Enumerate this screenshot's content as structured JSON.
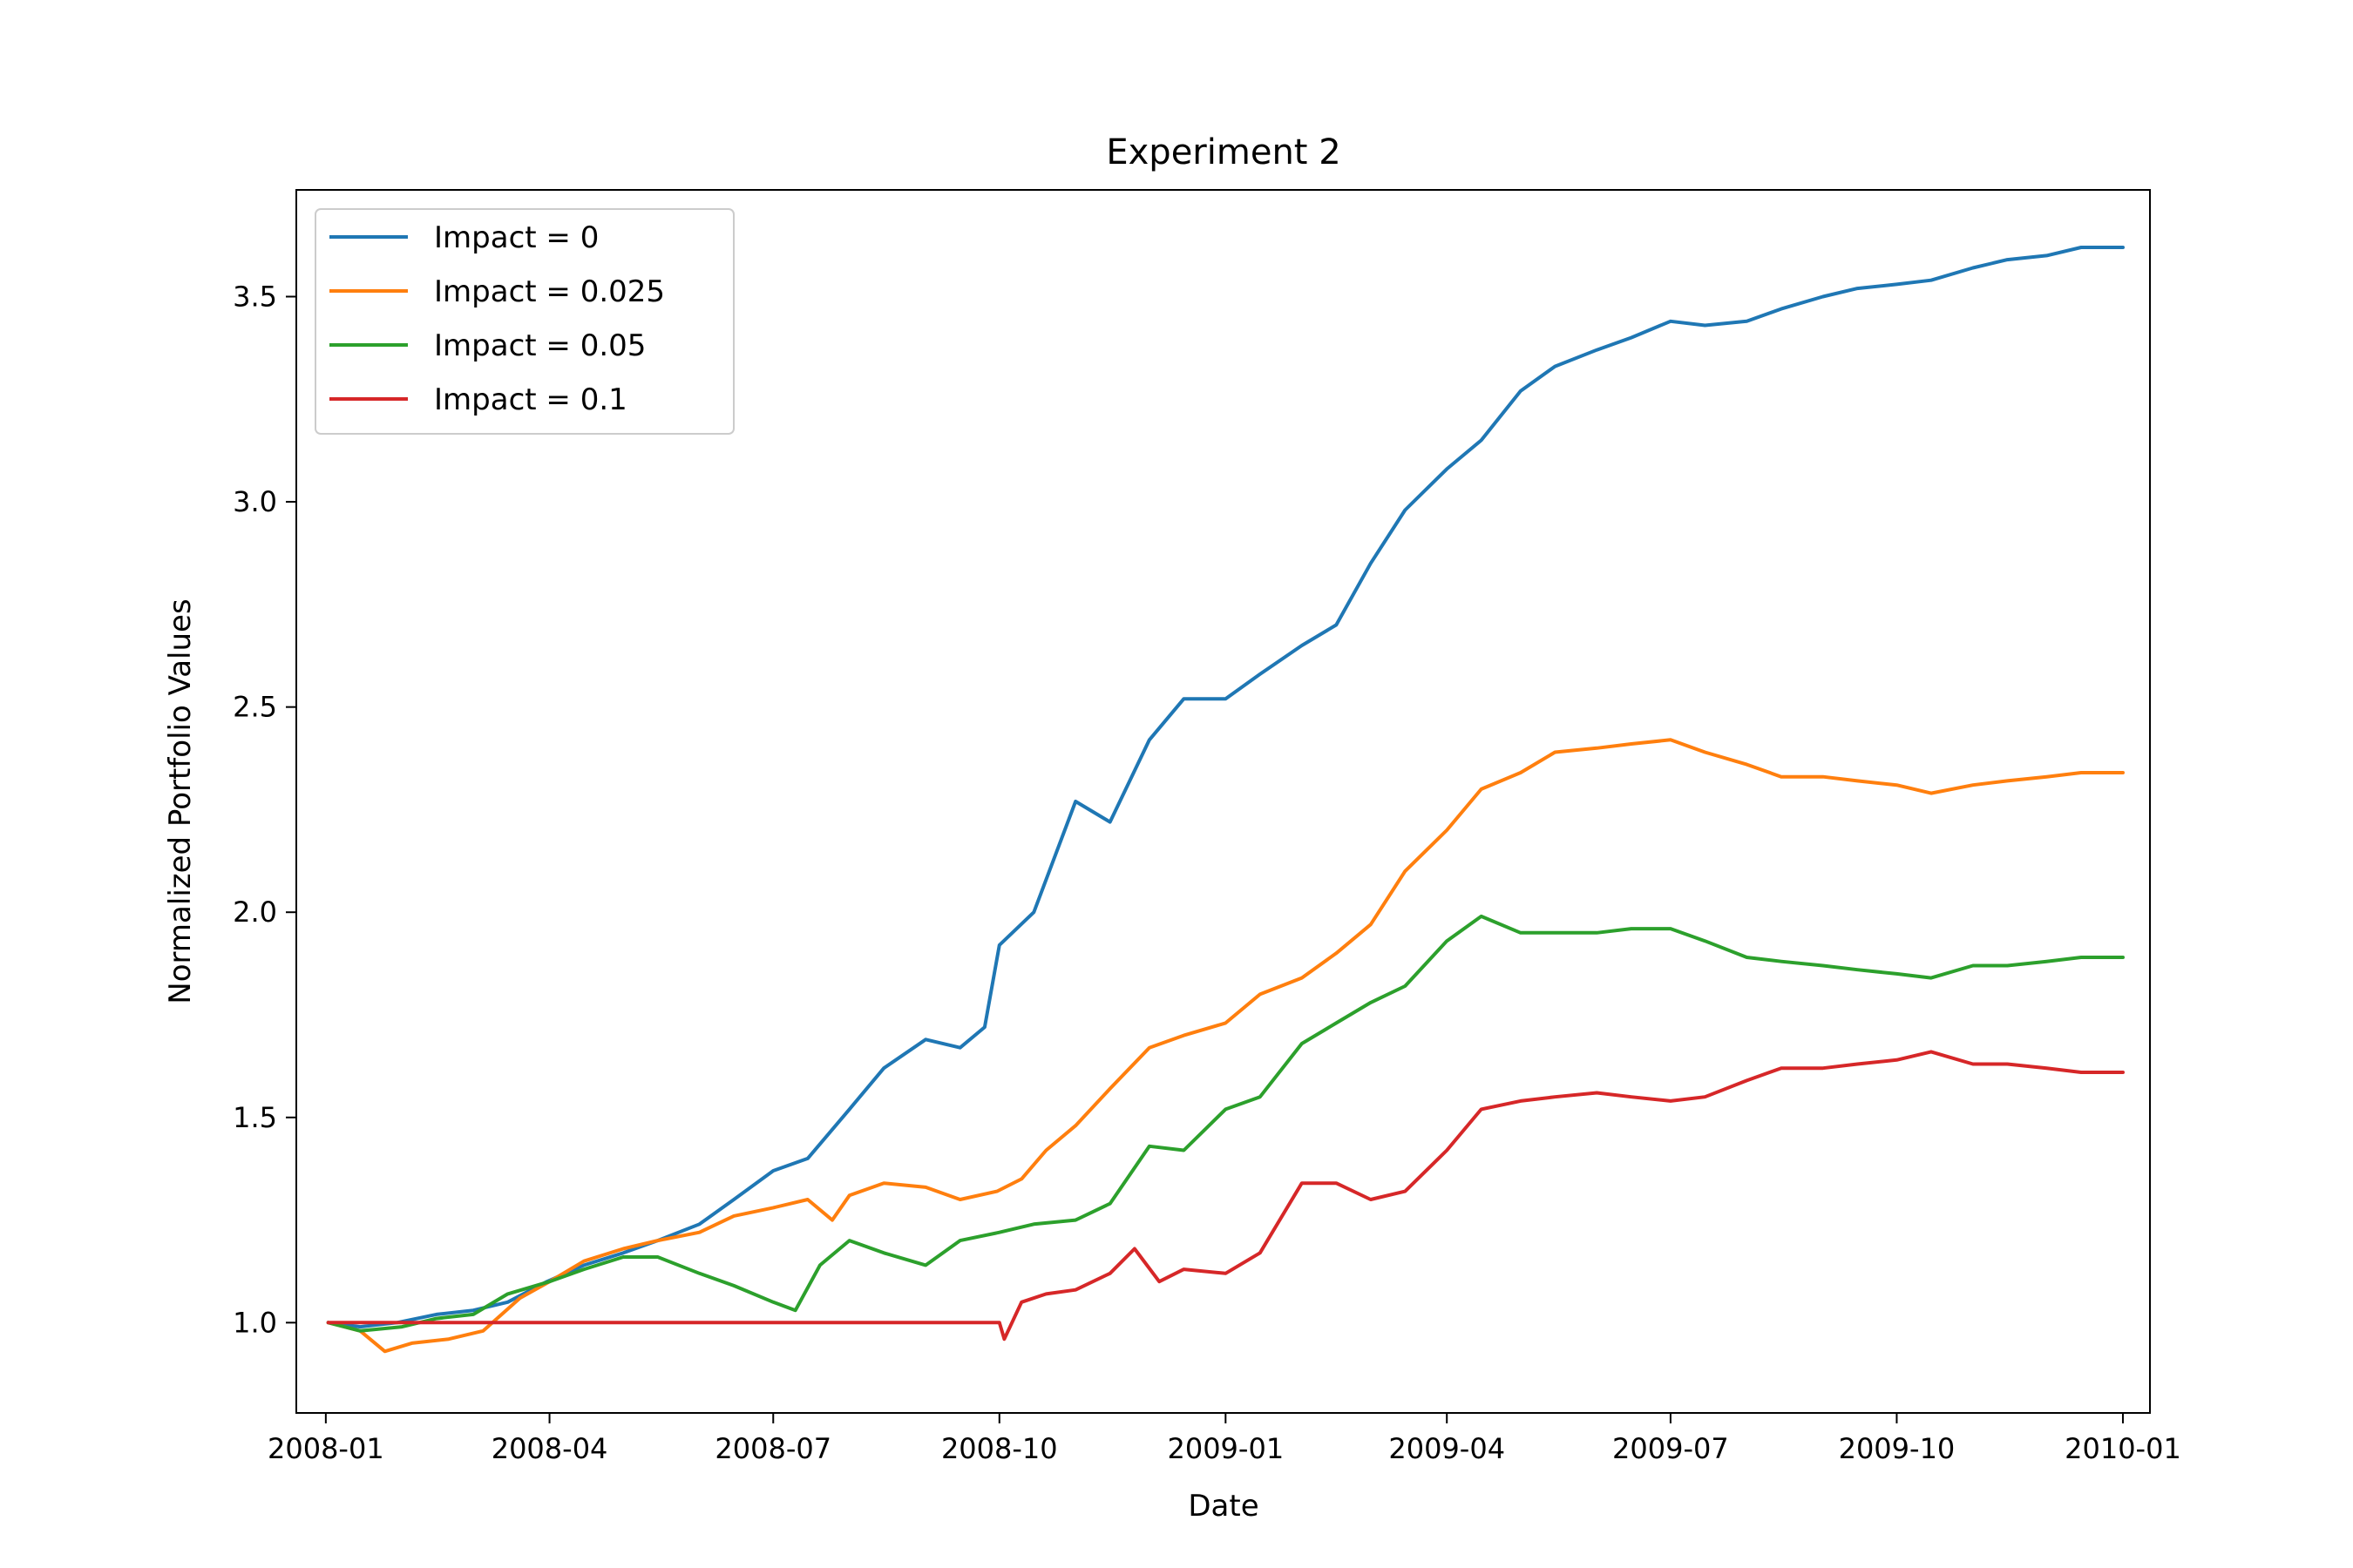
{
  "chart_data": {
    "type": "line",
    "title": "Experiment 2",
    "xlabel": "Date",
    "ylabel": "Normalized Portfolio Values",
    "x_ticks": [
      "2008-01",
      "2008-04",
      "2008-07",
      "2008-10",
      "2009-01",
      "2009-04",
      "2009-07",
      "2009-10",
      "2010-01"
    ],
    "y_ticks": [
      "1.0",
      "1.5",
      "2.0",
      "2.5",
      "3.0",
      "3.5"
    ],
    "xlim": [
      "2007-12-20",
      "2010-01-12"
    ],
    "ylim": [
      0.78,
      3.76
    ],
    "grid": false,
    "legend_position": "top-left",
    "series": [
      {
        "name": "Impact = 0",
        "color": "#1f77b4",
        "points": [
          [
            "2008-01-02",
            1.0
          ],
          [
            "2008-01-15",
            0.99
          ],
          [
            "2008-01-30",
            1.0
          ],
          [
            "2008-02-15",
            1.02
          ],
          [
            "2008-03-01",
            1.03
          ],
          [
            "2008-03-15",
            1.05
          ],
          [
            "2008-03-31",
            1.1
          ],
          [
            "2008-04-15",
            1.14
          ],
          [
            "2008-05-01",
            1.17
          ],
          [
            "2008-05-15",
            1.2
          ],
          [
            "2008-06-01",
            1.24
          ],
          [
            "2008-06-15",
            1.3
          ],
          [
            "2008-07-01",
            1.37
          ],
          [
            "2008-07-15",
            1.4
          ],
          [
            "2008-08-01",
            1.52
          ],
          [
            "2008-08-15",
            1.62
          ],
          [
            "2008-09-01",
            1.69
          ],
          [
            "2008-09-15",
            1.67
          ],
          [
            "2008-09-25",
            1.72
          ],
          [
            "2008-10-01",
            1.92
          ],
          [
            "2008-10-15",
            2.0
          ],
          [
            "2008-11-01",
            2.27
          ],
          [
            "2008-11-15",
            2.22
          ],
          [
            "2008-12-01",
            2.42
          ],
          [
            "2008-12-15",
            2.52
          ],
          [
            "2009-01-01",
            2.52
          ],
          [
            "2009-01-15",
            2.58
          ],
          [
            "2009-02-01",
            2.65
          ],
          [
            "2009-02-15",
            2.7
          ],
          [
            "2009-03-01",
            2.85
          ],
          [
            "2009-03-15",
            2.98
          ],
          [
            "2009-04-01",
            3.08
          ],
          [
            "2009-04-15",
            3.15
          ],
          [
            "2009-05-01",
            3.27
          ],
          [
            "2009-05-15",
            3.33
          ],
          [
            "2009-06-01",
            3.37
          ],
          [
            "2009-06-15",
            3.4
          ],
          [
            "2009-07-01",
            3.44
          ],
          [
            "2009-07-15",
            3.43
          ],
          [
            "2009-08-01",
            3.44
          ],
          [
            "2009-08-15",
            3.47
          ],
          [
            "2009-09-01",
            3.5
          ],
          [
            "2009-09-15",
            3.52
          ],
          [
            "2009-10-01",
            3.53
          ],
          [
            "2009-10-15",
            3.54
          ],
          [
            "2009-11-01",
            3.57
          ],
          [
            "2009-11-15",
            3.59
          ],
          [
            "2009-12-01",
            3.6
          ],
          [
            "2009-12-15",
            3.62
          ],
          [
            "2010-01-01",
            3.62
          ]
        ]
      },
      {
        "name": "Impact = 0.025",
        "color": "#ff7f0e",
        "points": [
          [
            "2008-01-02",
            1.0
          ],
          [
            "2008-01-15",
            0.98
          ],
          [
            "2008-01-25",
            0.93
          ],
          [
            "2008-02-05",
            0.95
          ],
          [
            "2008-02-20",
            0.96
          ],
          [
            "2008-03-05",
            0.98
          ],
          [
            "2008-03-20",
            1.06
          ],
          [
            "2008-04-01",
            1.1
          ],
          [
            "2008-04-15",
            1.15
          ],
          [
            "2008-05-01",
            1.18
          ],
          [
            "2008-05-15",
            1.2
          ],
          [
            "2008-06-01",
            1.22
          ],
          [
            "2008-06-15",
            1.26
          ],
          [
            "2008-07-01",
            1.28
          ],
          [
            "2008-07-15",
            1.3
          ],
          [
            "2008-07-25",
            1.25
          ],
          [
            "2008-08-01",
            1.31
          ],
          [
            "2008-08-15",
            1.34
          ],
          [
            "2008-09-01",
            1.33
          ],
          [
            "2008-09-15",
            1.3
          ],
          [
            "2008-09-30",
            1.32
          ],
          [
            "2008-10-10",
            1.35
          ],
          [
            "2008-10-20",
            1.42
          ],
          [
            "2008-11-01",
            1.48
          ],
          [
            "2008-11-15",
            1.57
          ],
          [
            "2008-12-01",
            1.67
          ],
          [
            "2008-12-15",
            1.7
          ],
          [
            "2009-01-01",
            1.73
          ],
          [
            "2009-01-15",
            1.8
          ],
          [
            "2009-02-01",
            1.84
          ],
          [
            "2009-02-15",
            1.9
          ],
          [
            "2009-03-01",
            1.97
          ],
          [
            "2009-03-15",
            2.1
          ],
          [
            "2009-04-01",
            2.2
          ],
          [
            "2009-04-15",
            2.3
          ],
          [
            "2009-05-01",
            2.34
          ],
          [
            "2009-05-15",
            2.39
          ],
          [
            "2009-06-01",
            2.4
          ],
          [
            "2009-06-15",
            2.41
          ],
          [
            "2009-07-01",
            2.42
          ],
          [
            "2009-07-15",
            2.39
          ],
          [
            "2009-08-01",
            2.36
          ],
          [
            "2009-08-15",
            2.33
          ],
          [
            "2009-09-01",
            2.33
          ],
          [
            "2009-09-15",
            2.32
          ],
          [
            "2009-10-01",
            2.31
          ],
          [
            "2009-10-15",
            2.29
          ],
          [
            "2009-11-01",
            2.31
          ],
          [
            "2009-11-15",
            2.32
          ],
          [
            "2009-12-01",
            2.33
          ],
          [
            "2009-12-15",
            2.34
          ],
          [
            "2010-01-01",
            2.34
          ]
        ]
      },
      {
        "name": "Impact = 0.05",
        "color": "#2ca02c",
        "points": [
          [
            "2008-01-02",
            1.0
          ],
          [
            "2008-01-15",
            0.98
          ],
          [
            "2008-02-01",
            0.99
          ],
          [
            "2008-02-15",
            1.01
          ],
          [
            "2008-03-01",
            1.02
          ],
          [
            "2008-03-15",
            1.07
          ],
          [
            "2008-04-01",
            1.1
          ],
          [
            "2008-04-15",
            1.13
          ],
          [
            "2008-05-01",
            1.16
          ],
          [
            "2008-05-15",
            1.16
          ],
          [
            "2008-06-01",
            1.12
          ],
          [
            "2008-06-15",
            1.09
          ],
          [
            "2008-07-01",
            1.05
          ],
          [
            "2008-07-10",
            1.03
          ],
          [
            "2008-07-20",
            1.14
          ],
          [
            "2008-08-01",
            1.2
          ],
          [
            "2008-08-15",
            1.17
          ],
          [
            "2008-09-01",
            1.14
          ],
          [
            "2008-09-15",
            1.2
          ],
          [
            "2008-10-01",
            1.22
          ],
          [
            "2008-10-15",
            1.24
          ],
          [
            "2008-11-01",
            1.25
          ],
          [
            "2008-11-15",
            1.29
          ],
          [
            "2008-12-01",
            1.43
          ],
          [
            "2008-12-15",
            1.42
          ],
          [
            "2009-01-01",
            1.52
          ],
          [
            "2009-01-15",
            1.55
          ],
          [
            "2009-02-01",
            1.68
          ],
          [
            "2009-02-15",
            1.73
          ],
          [
            "2009-03-01",
            1.78
          ],
          [
            "2009-03-15",
            1.82
          ],
          [
            "2009-04-01",
            1.93
          ],
          [
            "2009-04-15",
            1.99
          ],
          [
            "2009-05-01",
            1.95
          ],
          [
            "2009-05-15",
            1.95
          ],
          [
            "2009-06-01",
            1.95
          ],
          [
            "2009-06-15",
            1.96
          ],
          [
            "2009-07-01",
            1.96
          ],
          [
            "2009-07-15",
            1.93
          ],
          [
            "2009-08-01",
            1.89
          ],
          [
            "2009-08-15",
            1.88
          ],
          [
            "2009-09-01",
            1.87
          ],
          [
            "2009-09-15",
            1.86
          ],
          [
            "2009-10-01",
            1.85
          ],
          [
            "2009-10-15",
            1.84
          ],
          [
            "2009-11-01",
            1.87
          ],
          [
            "2009-11-15",
            1.87
          ],
          [
            "2009-12-01",
            1.88
          ],
          [
            "2009-12-15",
            1.89
          ],
          [
            "2010-01-01",
            1.89
          ]
        ]
      },
      {
        "name": "Impact = 0.1",
        "color": "#d62728",
        "points": [
          [
            "2008-01-02",
            1.0
          ],
          [
            "2008-10-01",
            1.0
          ],
          [
            "2008-10-03",
            0.96
          ],
          [
            "2008-10-10",
            1.05
          ],
          [
            "2008-10-20",
            1.07
          ],
          [
            "2008-11-01",
            1.08
          ],
          [
            "2008-11-15",
            1.12
          ],
          [
            "2008-11-25",
            1.18
          ],
          [
            "2008-12-05",
            1.1
          ],
          [
            "2008-12-15",
            1.13
          ],
          [
            "2009-01-01",
            1.12
          ],
          [
            "2009-01-15",
            1.17
          ],
          [
            "2009-02-01",
            1.34
          ],
          [
            "2009-02-15",
            1.34
          ],
          [
            "2009-03-01",
            1.3
          ],
          [
            "2009-03-15",
            1.32
          ],
          [
            "2009-04-01",
            1.42
          ],
          [
            "2009-04-15",
            1.52
          ],
          [
            "2009-05-01",
            1.54
          ],
          [
            "2009-05-15",
            1.55
          ],
          [
            "2009-06-01",
            1.56
          ],
          [
            "2009-06-15",
            1.55
          ],
          [
            "2009-07-01",
            1.54
          ],
          [
            "2009-07-15",
            1.55
          ],
          [
            "2009-08-01",
            1.59
          ],
          [
            "2009-08-15",
            1.62
          ],
          [
            "2009-09-01",
            1.62
          ],
          [
            "2009-09-15",
            1.63
          ],
          [
            "2009-10-01",
            1.64
          ],
          [
            "2009-10-15",
            1.66
          ],
          [
            "2009-11-01",
            1.63
          ],
          [
            "2009-11-15",
            1.63
          ],
          [
            "2009-12-01",
            1.62
          ],
          [
            "2009-12-15",
            1.61
          ],
          [
            "2010-01-01",
            1.61
          ]
        ]
      }
    ]
  }
}
